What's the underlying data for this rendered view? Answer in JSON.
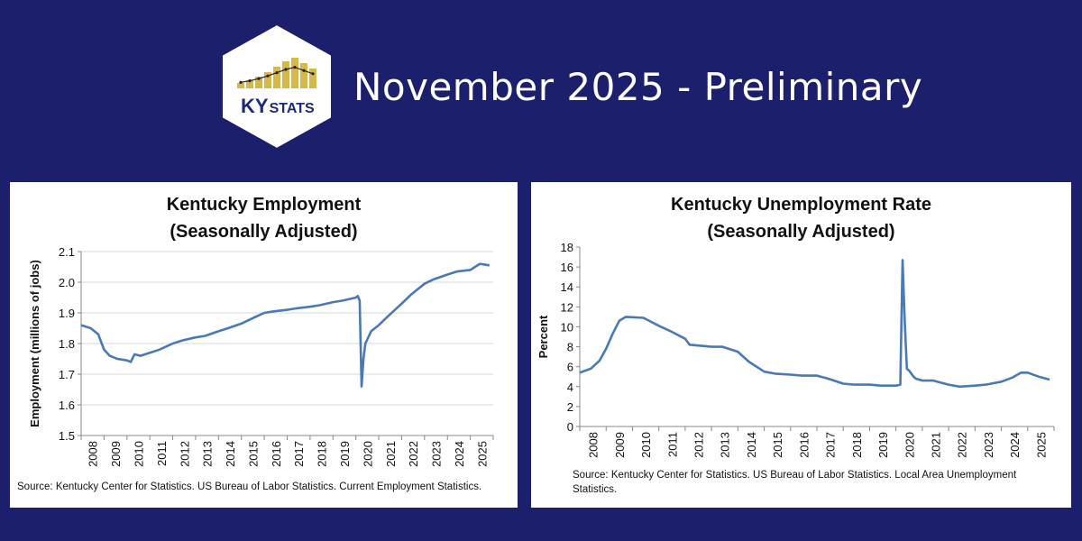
{
  "header": {
    "headline": "November 2025 - Preliminary",
    "logo_text_ky": "KY",
    "logo_text_stats": "STATS",
    "colors": {
      "background": "#1c1f6b",
      "logo_bars": "#d4b84a",
      "logo_text": "#1c2a7a"
    }
  },
  "chart_data": [
    {
      "type": "line",
      "title_line1": "Kentucky Employment",
      "title_line2": "(Seasonally Adjusted)",
      "ylabel": "Employment (millions of jobs)",
      "xlabel": "",
      "ylim": [
        1.5,
        2.1
      ],
      "yticks": [
        "1.5",
        "1.6",
        "1.7",
        "1.8",
        "1.9",
        "2.0",
        "2.1"
      ],
      "xticks": [
        "2008",
        "2009",
        "2010",
        "2011",
        "2012",
        "2013",
        "2014",
        "2015",
        "2016",
        "2017",
        "2018",
        "2019",
        "2020",
        "2021",
        "2022",
        "2023",
        "2024",
        "2025"
      ],
      "grid": true,
      "color": "#4a7ab5",
      "source": "Source: Kentucky Center for Statistics. US Bureau of Labor Statistics. Current Employment Statistics.",
      "series": [
        {
          "x": [
            "2008-01",
            "2008-06",
            "2008-10",
            "2009-01",
            "2009-04",
            "2009-08",
            "2010-01",
            "2010-03",
            "2010-05",
            "2010-08",
            "2011-01",
            "2011-06",
            "2012-01",
            "2012-06",
            "2013-01",
            "2013-06",
            "2014-01",
            "2014-06",
            "2015-01",
            "2015-06",
            "2016-01",
            "2016-06",
            "2017-01",
            "2017-06",
            "2018-01",
            "2018-06",
            "2019-01",
            "2019-06",
            "2020-01",
            "2020-02",
            "2020-03",
            "2020-04",
            "2020-05",
            "2020-06",
            "2020-09",
            "2021-01",
            "2021-06",
            "2022-01",
            "2022-06",
            "2023-01",
            "2023-06",
            "2024-01",
            "2024-06",
            "2025-01",
            "2025-06",
            "2025-11"
          ],
          "y": [
            1.86,
            1.85,
            1.83,
            1.78,
            1.76,
            1.75,
            1.745,
            1.74,
            1.765,
            1.76,
            1.77,
            1.78,
            1.8,
            1.81,
            1.82,
            1.825,
            1.84,
            1.85,
            1.865,
            1.88,
            1.9,
            1.905,
            1.91,
            1.915,
            1.92,
            1.925,
            1.935,
            1.94,
            1.95,
            1.955,
            1.94,
            1.66,
            1.75,
            1.8,
            1.84,
            1.86,
            1.89,
            1.93,
            1.96,
            1.995,
            2.01,
            2.025,
            2.035,
            2.04,
            2.06,
            2.055
          ]
        }
      ]
    },
    {
      "type": "line",
      "title_line1": "Kentucky Unemployment Rate",
      "title_line2": "(Seasonally Adjusted)",
      "ylabel": "Percent",
      "xlabel": "",
      "ylim": [
        0,
        18
      ],
      "yticks": [
        "0",
        "2",
        "4",
        "6",
        "8",
        "10",
        "12",
        "14",
        "16",
        "18"
      ],
      "xticks": [
        "2008",
        "2009",
        "2010",
        "2011",
        "2012",
        "2013",
        "2014",
        "2015",
        "2016",
        "2017",
        "2018",
        "2019",
        "2020",
        "2021",
        "2022",
        "2023",
        "2024",
        "2025"
      ],
      "grid": false,
      "color": "#4a7ab5",
      "source": "Source: Kentucky Center for Statistics. US Bureau of Labor Statistics. Local Area Unemployment Statistics.",
      "series": [
        {
          "x": [
            "2008-01",
            "2008-06",
            "2008-10",
            "2009-01",
            "2009-04",
            "2009-07",
            "2009-10",
            "2010-06",
            "2011-01",
            "2011-06",
            "2012-01",
            "2012-03",
            "2013-01",
            "2013-06",
            "2014-01",
            "2014-06",
            "2015-01",
            "2015-06",
            "2016-01",
            "2016-06",
            "2017-01",
            "2017-06",
            "2018-01",
            "2018-06",
            "2019-01",
            "2019-06",
            "2020-01",
            "2020-03",
            "2020-04",
            "2020-05",
            "2020-06",
            "2020-07",
            "2020-08",
            "2020-09",
            "2020-10",
            "2021-01",
            "2021-06",
            "2022-01",
            "2022-06",
            "2023-01",
            "2023-06",
            "2024-01",
            "2024-06",
            "2024-10",
            "2025-01",
            "2025-06",
            "2025-11"
          ],
          "y": [
            5.4,
            5.8,
            6.6,
            7.8,
            9.3,
            10.6,
            11.0,
            10.9,
            10.1,
            9.6,
            8.8,
            8.2,
            8.0,
            8.0,
            7.5,
            6.5,
            5.5,
            5.3,
            5.2,
            5.1,
            5.1,
            4.8,
            4.3,
            4.2,
            4.2,
            4.1,
            4.1,
            4.2,
            16.7,
            10.5,
            5.8,
            5.6,
            5.3,
            5.0,
            4.8,
            4.6,
            4.6,
            4.2,
            4.0,
            4.1,
            4.2,
            4.5,
            4.9,
            5.4,
            5.4,
            5.0,
            4.7
          ]
        }
      ]
    }
  ]
}
